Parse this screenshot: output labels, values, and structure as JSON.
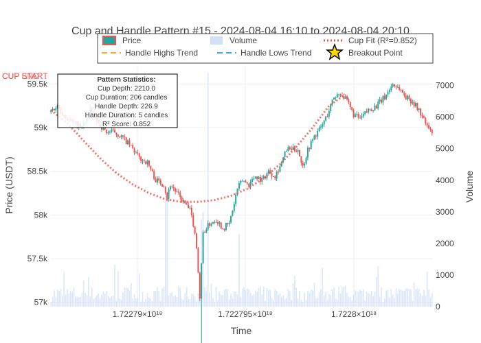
{
  "chart_data": {
    "type": "candlestick",
    "title": "Cup and Handle Pattern #15 - 2024-08-04 16:10 to 2024-08-04 20:10",
    "xlabel": "Time",
    "ylabel": "Price (USDT)",
    "y2label": "Volume",
    "ylim": [
      56950,
      59700
    ],
    "y2lim": [
      0,
      7600
    ],
    "x_ticks": [
      "1.72279×10¹⁸",
      "1.722795×10¹⁸",
      "1.7228×10¹⁸"
    ],
    "y_ticks": [
      {
        "value": 57000,
        "label": "57k"
      },
      {
        "value": 57500,
        "label": "57.5k"
      },
      {
        "value": 58000,
        "label": "58k"
      },
      {
        "value": 58500,
        "label": "58.5k"
      },
      {
        "value": 59000,
        "label": "59k"
      },
      {
        "value": 59500,
        "label": "59.5k"
      }
    ],
    "y2_ticks": [
      0,
      1000,
      2000,
      3000,
      4000,
      5000,
      6000,
      7000
    ],
    "legend": {
      "position": "top",
      "items": [
        {
          "name": "Price",
          "kind": "candle"
        },
        {
          "name": "Volume",
          "kind": "bar"
        },
        {
          "name": "Cup Fit (R²=0.852)",
          "kind": "dotted"
        },
        {
          "name": "Handle Highs Trend",
          "kind": "dash-orange"
        },
        {
          "name": "Handle Lows Trend",
          "kind": "dash-blue"
        },
        {
          "name": "Breakout Point",
          "kind": "star"
        }
      ]
    },
    "annotations": {
      "cup_start_labels": [
        "CUP START",
        "CUP END"
      ],
      "stats_title": "Pattern Statistics:",
      "stats_lines": [
        "Cup Depth: 2210.0",
        "Cup Duration: 206 candles",
        "Handle Depth: 226.9",
        "Handle Duration: 5 candles",
        "R² Score: 0.852"
      ]
    },
    "price_path": [
      [
        0,
        59180
      ],
      [
        5,
        59250
      ],
      [
        10,
        59120
      ],
      [
        15,
        59050
      ],
      [
        20,
        59000
      ],
      [
        25,
        59200
      ],
      [
        30,
        59050
      ],
      [
        35,
        58950
      ],
      [
        40,
        58950
      ],
      [
        45,
        58880
      ],
      [
        50,
        58780
      ],
      [
        55,
        58650
      ],
      [
        60,
        58600
      ],
      [
        65,
        58400
      ],
      [
        70,
        58350
      ],
      [
        72,
        58200
      ],
      [
        74,
        58350
      ],
      [
        78,
        58250
      ],
      [
        82,
        58150
      ],
      [
        86,
        58050
      ],
      [
        88,
        57900
      ],
      [
        90,
        57650
      ],
      [
        92,
        57050
      ],
      [
        94,
        57800
      ],
      [
        98,
        57900
      ],
      [
        102,
        57950
      ],
      [
        106,
        57850
      ],
      [
        110,
        57900
      ],
      [
        112,
        58050
      ],
      [
        115,
        58300
      ],
      [
        118,
        58400
      ],
      [
        122,
        58350
      ],
      [
        126,
        58450
      ],
      [
        130,
        58400
      ],
      [
        134,
        58500
      ],
      [
        138,
        58450
      ],
      [
        142,
        58600
      ],
      [
        145,
        58750
      ],
      [
        148,
        58750
      ],
      [
        152,
        58750
      ],
      [
        155,
        58550
      ],
      [
        158,
        58750
      ],
      [
        162,
        58900
      ],
      [
        166,
        59000
      ],
      [
        170,
        59150
      ],
      [
        174,
        59350
      ],
      [
        178,
        59400
      ],
      [
        182,
        59300
      ],
      [
        186,
        59150
      ],
      [
        190,
        59100
      ],
      [
        195,
        59200
      ],
      [
        200,
        59250
      ],
      [
        205,
        59350
      ],
      [
        210,
        59500
      ],
      [
        214,
        59450
      ],
      [
        218,
        59350
      ],
      [
        222,
        59300
      ],
      [
        226,
        59200
      ],
      [
        230,
        59050
      ],
      [
        233,
        58950
      ]
    ],
    "cup_fit": [
      [
        0,
        59200
      ],
      [
        10,
        59050
      ],
      [
        20,
        58850
      ],
      [
        30,
        58650
      ],
      [
        40,
        58480
      ],
      [
        50,
        58350
      ],
      [
        60,
        58250
      ],
      [
        70,
        58180
      ],
      [
        80,
        58150
      ],
      [
        90,
        58150
      ],
      [
        100,
        58170
      ],
      [
        110,
        58220
      ],
      [
        120,
        58300
      ],
      [
        130,
        58420
      ],
      [
        140,
        58580
      ],
      [
        150,
        58780
      ],
      [
        160,
        59000
      ],
      [
        170,
        59250
      ],
      [
        180,
        59380
      ]
    ]
  }
}
